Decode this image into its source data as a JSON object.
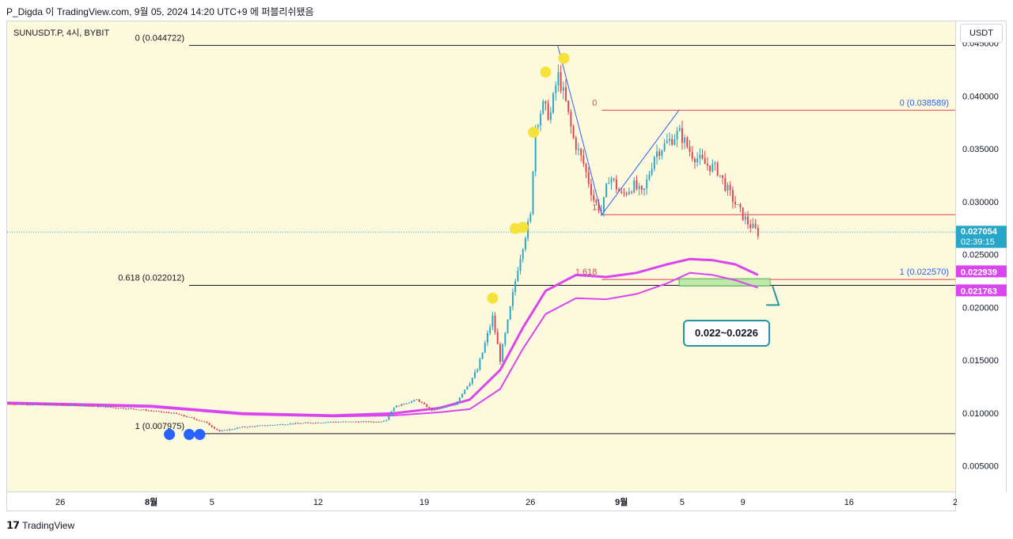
{
  "header": {
    "text": "P_Digda 이 TradingView.com, 9월 05, 2024 14:20 UTC+9 에 퍼블리쉬됐음"
  },
  "symbol": {
    "text": "SUNUSDT.P, 4시, BYBIT"
  },
  "currency_button": {
    "label": "USDT"
  },
  "footer": {
    "brand": "TradingView",
    "logo_glyph": "𝟭𝟳"
  },
  "callout": {
    "text": "0.022~0.0226"
  },
  "price_tag": {
    "price": "0.027054",
    "countdown": "02:39:15"
  },
  "ma_tags": [
    "0.022939",
    "0.021763"
  ],
  "colors": {
    "background": "#fdf9dc",
    "up": "#26a6c9",
    "down": "#e0404f",
    "ma": "#d946ef",
    "fib_left": "#131722",
    "fib_right": "#e0404f",
    "fib_right_label": "#2962ff",
    "zone_fill": "#b7e9a4",
    "zone_border": "#4caf50",
    "price_tag": "#26a6c9",
    "ma_tag": "#d946ef",
    "marker_blue": "#2962ff",
    "marker_yellow": "#f5e23a"
  },
  "chart_data": {
    "type": "candlestick",
    "title": "",
    "symbol": "SUNUSDT.P",
    "interval": "4h",
    "exchange": "BYBIT",
    "currency": "USDT",
    "grid": false,
    "y_axis": {
      "ticks": [
        "0.045000",
        "0.040000",
        "0.035000",
        "0.030000",
        "0.025000",
        "0.020000",
        "0.015000",
        "0.010000",
        "0.005000"
      ],
      "tick_values": [
        0.045,
        0.04,
        0.035,
        0.03,
        0.025,
        0.02,
        0.015,
        0.01,
        0.005
      ],
      "range": [
        0.0025,
        0.047
      ]
    },
    "x_axis": {
      "ticks": [
        {
          "label": "26",
          "bold": false,
          "day": -6
        },
        {
          "label": "8월",
          "bold": true,
          "day": 0
        },
        {
          "label": "5",
          "bold": false,
          "day": 4
        },
        {
          "label": "12",
          "bold": false,
          "day": 11
        },
        {
          "label": "19",
          "bold": false,
          "day": 18
        },
        {
          "label": "26",
          "bold": false,
          "day": 25
        },
        {
          "label": "9월",
          "bold": true,
          "day": 31
        },
        {
          "label": "5",
          "bold": false,
          "day": 35
        },
        {
          "label": "9",
          "bold": false,
          "day": 39
        },
        {
          "label": "16",
          "bold": false,
          "day": 46
        },
        {
          "label": "2",
          "bold": false,
          "day": 53
        }
      ],
      "range_days": [
        -9.5,
        53
      ]
    },
    "price_path": [
      {
        "day": -9.5,
        "price": 0.0108
      },
      {
        "day": -5,
        "price": 0.0107
      },
      {
        "day": -1,
        "price": 0.0103
      },
      {
        "day": 1.5,
        "price": 0.0099
      },
      {
        "day": 2.5,
        "price": 0.0095
      },
      {
        "day": 3.5,
        "price": 0.0091
      },
      {
        "day": 4.5,
        "price": 0.0082
      },
      {
        "day": 6,
        "price": 0.0086
      },
      {
        "day": 9,
        "price": 0.0089
      },
      {
        "day": 12,
        "price": 0.0091
      },
      {
        "day": 15,
        "price": 0.0091
      },
      {
        "day": 15.5,
        "price": 0.0093
      },
      {
        "day": 16,
        "price": 0.0105
      },
      {
        "day": 17.5,
        "price": 0.0112
      },
      {
        "day": 18.5,
        "price": 0.0102
      },
      {
        "day": 20,
        "price": 0.0107
      },
      {
        "day": 21.5,
        "price": 0.014
      },
      {
        "day": 22.5,
        "price": 0.019
      },
      {
        "day": 23,
        "price": 0.015
      },
      {
        "day": 23.5,
        "price": 0.0185
      },
      {
        "day": 24.2,
        "price": 0.024
      },
      {
        "day": 24.6,
        "price": 0.0265
      },
      {
        "day": 25,
        "price": 0.0285
      },
      {
        "day": 25.3,
        "price": 0.037
      },
      {
        "day": 25.8,
        "price": 0.039
      },
      {
        "day": 26.3,
        "price": 0.038
      },
      {
        "day": 26.8,
        "price": 0.042
      },
      {
        "day": 27.3,
        "price": 0.0395
      },
      {
        "day": 27.8,
        "price": 0.036
      },
      {
        "day": 28.5,
        "price": 0.0335
      },
      {
        "day": 29.2,
        "price": 0.03
      },
      {
        "day": 29.7,
        "price": 0.029
      },
      {
        "day": 30.2,
        "price": 0.0325
      },
      {
        "day": 31,
        "price": 0.0305
      },
      {
        "day": 31.8,
        "price": 0.0315
      },
      {
        "day": 32.4,
        "price": 0.0305
      },
      {
        "day": 33.2,
        "price": 0.0345
      },
      {
        "day": 34,
        "price": 0.0355
      },
      {
        "day": 34.8,
        "price": 0.0365
      },
      {
        "day": 35.6,
        "price": 0.0345
      },
      {
        "day": 36.5,
        "price": 0.0335
      },
      {
        "day": 37.3,
        "price": 0.033
      },
      {
        "day": 38,
        "price": 0.031
      },
      {
        "day": 38.8,
        "price": 0.029
      },
      {
        "day": 39.4,
        "price": 0.0278
      },
      {
        "day": 40,
        "price": 0.027
      }
    ],
    "ma_series": [
      {
        "points": [
          {
            "day": -9.5,
            "price": 0.0109
          },
          {
            "day": 0,
            "price": 0.0106
          },
          {
            "day": 6,
            "price": 0.0099
          },
          {
            "day": 12,
            "price": 0.0097
          },
          {
            "day": 16,
            "price": 0.0099
          },
          {
            "day": 19,
            "price": 0.0104
          },
          {
            "day": 21,
            "price": 0.0112
          },
          {
            "day": 23,
            "price": 0.014
          },
          {
            "day": 24.5,
            "price": 0.018
          },
          {
            "day": 26,
            "price": 0.0215
          },
          {
            "day": 28,
            "price": 0.023
          },
          {
            "day": 30,
            "price": 0.0228
          },
          {
            "day": 32,
            "price": 0.0232
          },
          {
            "day": 34,
            "price": 0.024
          },
          {
            "day": 35.5,
            "price": 0.0245
          },
          {
            "day": 37,
            "price": 0.0244
          },
          {
            "day": 38.5,
            "price": 0.024
          },
          {
            "day": 40,
            "price": 0.023
          }
        ]
      },
      {
        "points": [
          {
            "day": -9.5,
            "price": 0.0108
          },
          {
            "day": 0,
            "price": 0.0105
          },
          {
            "day": 6,
            "price": 0.0098
          },
          {
            "day": 12,
            "price": 0.0096
          },
          {
            "day": 16,
            "price": 0.0097
          },
          {
            "day": 19,
            "price": 0.01
          },
          {
            "day": 21,
            "price": 0.0103
          },
          {
            "day": 23,
            "price": 0.0122
          },
          {
            "day": 24.5,
            "price": 0.016
          },
          {
            "day": 26,
            "price": 0.0193
          },
          {
            "day": 28,
            "price": 0.0208
          },
          {
            "day": 30,
            "price": 0.0207
          },
          {
            "day": 32,
            "price": 0.0212
          },
          {
            "day": 34,
            "price": 0.0222
          },
          {
            "day": 35.5,
            "price": 0.0232
          },
          {
            "day": 37,
            "price": 0.023
          },
          {
            "day": 38.5,
            "price": 0.0225
          },
          {
            "day": 40,
            "price": 0.0218
          }
        ]
      }
    ],
    "fib_left": {
      "from_day": 2.5,
      "to_day": 53,
      "levels": [
        {
          "label": "0 (0.044722)",
          "price": 0.044722
        },
        {
          "label": "0.618 (0.022012)",
          "price": 0.022012
        },
        {
          "label": "1 (0.007975)",
          "price": 0.007975
        }
      ]
    },
    "fib_right": {
      "from_day": 29.7,
      "to_day": 53,
      "levels": [
        {
          "label": "0",
          "right_label": "0 (0.038589)",
          "price": 0.038589
        },
        {
          "label": "1",
          "right_label": "",
          "price": 0.0287
        },
        {
          "label": "1.618",
          "right_label": "1 (0.022570)",
          "price": 0.02257
        }
      ]
    },
    "trend_lines": [
      {
        "points": [
          {
            "day": 26.8,
            "price": 0.0447
          },
          {
            "day": 29.7,
            "price": 0.0287
          },
          {
            "day": 34.8,
            "price": 0.0386
          }
        ]
      }
    ],
    "zone": {
      "from_day": 34.8,
      "to_day": 40.8,
      "low": 0.02195,
      "high": 0.02265
    },
    "markers": [
      {
        "day": 1.2,
        "price": 0.0079,
        "color": "blue"
      },
      {
        "day": 2.5,
        "price": 0.0079,
        "color": "blue"
      },
      {
        "day": 3.2,
        "price": 0.0079,
        "color": "blue"
      },
      {
        "day": 22.5,
        "price": 0.0208,
        "color": "yellow"
      },
      {
        "day": 24.0,
        "price": 0.0274,
        "color": "yellow"
      },
      {
        "day": 24.5,
        "price": 0.0275,
        "color": "yellow"
      },
      {
        "day": 25.2,
        "price": 0.0365,
        "color": "yellow"
      },
      {
        "day": 26.0,
        "price": 0.0422,
        "color": "yellow"
      },
      {
        "day": 27.2,
        "price": 0.0435,
        "color": "yellow"
      }
    ],
    "last_price": 0.027054
  }
}
